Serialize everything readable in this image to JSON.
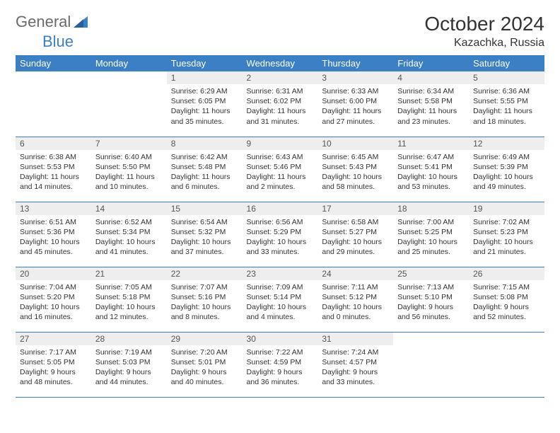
{
  "brand": {
    "part1": "General",
    "part2": "Blue",
    "logo_color": "#3b7fc4",
    "text_color": "#6b6b6b"
  },
  "title": "October 2024",
  "location": "Kazachka, Russia",
  "colors": {
    "header_bg": "#3b7fc4",
    "header_text": "#ffffff",
    "daynum_bg": "#eeeeee",
    "border": "#3b7fc4",
    "body_text": "#333333"
  },
  "weekdays": [
    "Sunday",
    "Monday",
    "Tuesday",
    "Wednesday",
    "Thursday",
    "Friday",
    "Saturday"
  ],
  "weeks": [
    [
      null,
      null,
      {
        "n": "1",
        "sr": "6:29 AM",
        "ss": "6:05 PM",
        "dl": "11 hours and 35 minutes."
      },
      {
        "n": "2",
        "sr": "6:31 AM",
        "ss": "6:02 PM",
        "dl": "11 hours and 31 minutes."
      },
      {
        "n": "3",
        "sr": "6:33 AM",
        "ss": "6:00 PM",
        "dl": "11 hours and 27 minutes."
      },
      {
        "n": "4",
        "sr": "6:34 AM",
        "ss": "5:58 PM",
        "dl": "11 hours and 23 minutes."
      },
      {
        "n": "5",
        "sr": "6:36 AM",
        "ss": "5:55 PM",
        "dl": "11 hours and 18 minutes."
      }
    ],
    [
      {
        "n": "6",
        "sr": "6:38 AM",
        "ss": "5:53 PM",
        "dl": "11 hours and 14 minutes."
      },
      {
        "n": "7",
        "sr": "6:40 AM",
        "ss": "5:50 PM",
        "dl": "11 hours and 10 minutes."
      },
      {
        "n": "8",
        "sr": "6:42 AM",
        "ss": "5:48 PM",
        "dl": "11 hours and 6 minutes."
      },
      {
        "n": "9",
        "sr": "6:43 AM",
        "ss": "5:46 PM",
        "dl": "11 hours and 2 minutes."
      },
      {
        "n": "10",
        "sr": "6:45 AM",
        "ss": "5:43 PM",
        "dl": "10 hours and 58 minutes."
      },
      {
        "n": "11",
        "sr": "6:47 AM",
        "ss": "5:41 PM",
        "dl": "10 hours and 53 minutes."
      },
      {
        "n": "12",
        "sr": "6:49 AM",
        "ss": "5:39 PM",
        "dl": "10 hours and 49 minutes."
      }
    ],
    [
      {
        "n": "13",
        "sr": "6:51 AM",
        "ss": "5:36 PM",
        "dl": "10 hours and 45 minutes."
      },
      {
        "n": "14",
        "sr": "6:52 AM",
        "ss": "5:34 PM",
        "dl": "10 hours and 41 minutes."
      },
      {
        "n": "15",
        "sr": "6:54 AM",
        "ss": "5:32 PM",
        "dl": "10 hours and 37 minutes."
      },
      {
        "n": "16",
        "sr": "6:56 AM",
        "ss": "5:29 PM",
        "dl": "10 hours and 33 minutes."
      },
      {
        "n": "17",
        "sr": "6:58 AM",
        "ss": "5:27 PM",
        "dl": "10 hours and 29 minutes."
      },
      {
        "n": "18",
        "sr": "7:00 AM",
        "ss": "5:25 PM",
        "dl": "10 hours and 25 minutes."
      },
      {
        "n": "19",
        "sr": "7:02 AM",
        "ss": "5:23 PM",
        "dl": "10 hours and 21 minutes."
      }
    ],
    [
      {
        "n": "20",
        "sr": "7:04 AM",
        "ss": "5:20 PM",
        "dl": "10 hours and 16 minutes."
      },
      {
        "n": "21",
        "sr": "7:05 AM",
        "ss": "5:18 PM",
        "dl": "10 hours and 12 minutes."
      },
      {
        "n": "22",
        "sr": "7:07 AM",
        "ss": "5:16 PM",
        "dl": "10 hours and 8 minutes."
      },
      {
        "n": "23",
        "sr": "7:09 AM",
        "ss": "5:14 PM",
        "dl": "10 hours and 4 minutes."
      },
      {
        "n": "24",
        "sr": "7:11 AM",
        "ss": "5:12 PM",
        "dl": "10 hours and 0 minutes."
      },
      {
        "n": "25",
        "sr": "7:13 AM",
        "ss": "5:10 PM",
        "dl": "9 hours and 56 minutes."
      },
      {
        "n": "26",
        "sr": "7:15 AM",
        "ss": "5:08 PM",
        "dl": "9 hours and 52 minutes."
      }
    ],
    [
      {
        "n": "27",
        "sr": "7:17 AM",
        "ss": "5:05 PM",
        "dl": "9 hours and 48 minutes."
      },
      {
        "n": "28",
        "sr": "7:19 AM",
        "ss": "5:03 PM",
        "dl": "9 hours and 44 minutes."
      },
      {
        "n": "29",
        "sr": "7:20 AM",
        "ss": "5:01 PM",
        "dl": "9 hours and 40 minutes."
      },
      {
        "n": "30",
        "sr": "7:22 AM",
        "ss": "4:59 PM",
        "dl": "9 hours and 36 minutes."
      },
      {
        "n": "31",
        "sr": "7:24 AM",
        "ss": "4:57 PM",
        "dl": "9 hours and 33 minutes."
      },
      null,
      null
    ]
  ],
  "labels": {
    "sunrise": "Sunrise:",
    "sunset": "Sunset:",
    "daylight": "Daylight:"
  }
}
